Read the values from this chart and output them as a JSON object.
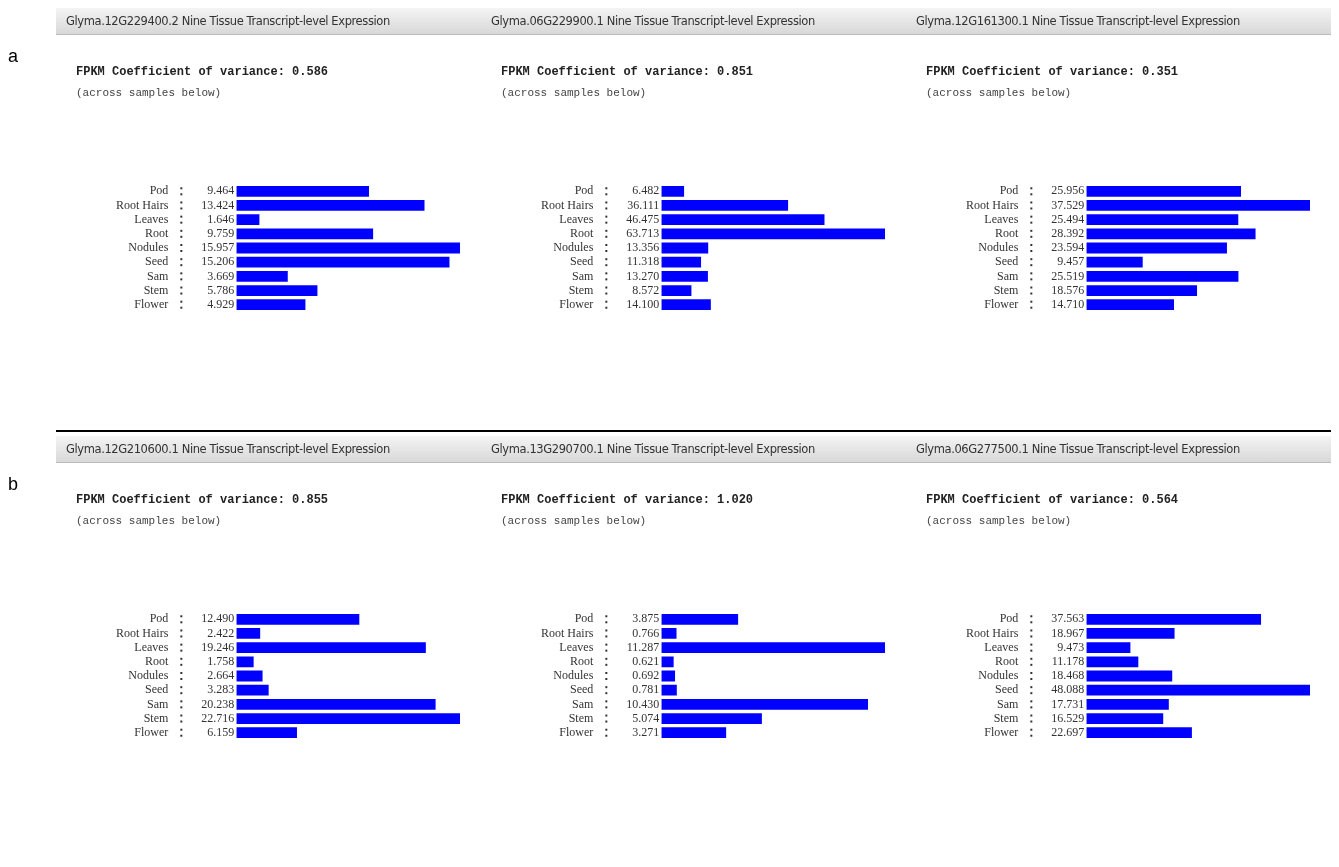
{
  "chart_data": [
    {
      "type": "bar",
      "orientation": "horizontal",
      "title": "Glyma.12G229400.2 Nine Tissue Transcript-level Expression",
      "subtitle": "FPKM Coefficient of variance: 0.586",
      "annotations": [
        "(across samples below)",
        "a"
      ],
      "categories": [
        "Pod",
        "Root Hairs",
        "Leaves",
        "Root",
        "Nodules",
        "Seed",
        "Sam",
        "Stem",
        "Flower"
      ],
      "color": "#0000ff",
      "values": [
        9.464,
        13.424,
        1.646,
        9.759,
        15.957,
        15.206,
        3.669,
        5.786,
        4.929
      ],
      "value_labels": [
        "9.464",
        "13.424",
        "1.646",
        "9.759",
        "15.957",
        "15.206",
        "3.669",
        "5.786",
        "4.929"
      ],
      "tick_labels": "y"
    },
    {
      "type": "bar",
      "orientation": "horizontal",
      "title": "Glyma.06G229900.1 Nine Tissue Transcript-level Expression",
      "subtitle": "FPKM Coefficient of variance: 0.851",
      "annotations": [
        "(across samples below)"
      ],
      "categories": [
        "Pod",
        "Root Hairs",
        "Leaves",
        "Root",
        "Nodules",
        "Seed",
        "Sam",
        "Stem",
        "Flower"
      ],
      "color": "#0000ff",
      "values": [
        6.482,
        36.111,
        46.475,
        63.713,
        13.356,
        11.318,
        13.27,
        8.572,
        14.1
      ],
      "value_labels": [
        "6.482",
        "36.111",
        "46.475",
        "63.713",
        "13.356",
        "11.318",
        "13.270",
        "8.572",
        "14.100"
      ],
      "tick_labels": "y"
    },
    {
      "type": "bar",
      "orientation": "horizontal",
      "title": "Glyma.12G161300.1 Nine Tissue Transcript-level Expression",
      "subtitle": "FPKM Coefficient of variance: 0.351",
      "annotations": [
        "(across samples below)"
      ],
      "categories": [
        "Pod",
        "Root Hairs",
        "Leaves",
        "Root",
        "Nodules",
        "Seed",
        "Sam",
        "Stem",
        "Flower"
      ],
      "color": "#0000ff",
      "values": [
        25.956,
        37.529,
        25.494,
        28.392,
        23.594,
        9.457,
        25.519,
        18.576,
        14.71
      ],
      "value_labels": [
        "25.956",
        "37.529",
        "25.494",
        "28.392",
        "23.594",
        "9.457",
        "25.519",
        "18.576",
        "14.710"
      ],
      "tick_labels": "y"
    },
    {
      "type": "bar",
      "orientation": "horizontal",
      "title": "Glyma.12G210600.1 Nine Tissue Transcript-level Expression",
      "subtitle": "FPKM Coefficient of variance: 0.855",
      "annotations": [
        "(across samples below)",
        "b"
      ],
      "categories": [
        "Pod",
        "Root Hairs",
        "Leaves",
        "Root",
        "Nodules",
        "Seed",
        "Sam",
        "Stem",
        "Flower"
      ],
      "color": "#0000ff",
      "values": [
        12.49,
        2.422,
        19.246,
        1.758,
        2.664,
        3.283,
        20.238,
        22.716,
        6.159
      ],
      "value_labels": [
        "12.490",
        "2.422",
        "19.246",
        "1.758",
        "2.664",
        "3.283",
        "20.238",
        "22.716",
        "6.159"
      ],
      "tick_labels": "y"
    },
    {
      "type": "bar",
      "orientation": "horizontal",
      "title": "Glyma.13G290700.1 Nine Tissue Transcript-level Expression",
      "subtitle": "FPKM Coefficient of variance: 1.020",
      "annotations": [
        "(across samples below)"
      ],
      "categories": [
        "Pod",
        "Root Hairs",
        "Leaves",
        "Root",
        "Nodules",
        "Seed",
        "Sam",
        "Stem",
        "Flower"
      ],
      "color": "#0000ff",
      "values": [
        3.875,
        0.766,
        11.287,
        0.621,
        0.692,
        0.781,
        10.43,
        5.074,
        3.271
      ],
      "value_labels": [
        "3.875",
        "0.766",
        "11.287",
        "0.621",
        "0.692",
        "0.781",
        "10.430",
        "5.074",
        "3.271"
      ],
      "tick_labels": "y"
    },
    {
      "type": "bar",
      "orientation": "horizontal",
      "title": "Glyma.06G277500.1 Nine Tissue Transcript-level Expression",
      "subtitle": "FPKM Coefficient of variance: 0.564",
      "annotations": [
        "(across samples below)"
      ],
      "categories": [
        "Pod",
        "Root Hairs",
        "Leaves",
        "Root",
        "Nodules",
        "Seed",
        "Sam",
        "Stem",
        "Flower"
      ],
      "color": "#0000ff",
      "values": [
        37.563,
        18.967,
        9.473,
        11.178,
        18.468,
        48.088,
        17.731,
        16.529,
        22.697
      ],
      "value_labels": [
        "37.563",
        "18.967",
        "9.473",
        "11.178",
        "18.468",
        "48.088",
        "17.731",
        "16.529",
        "22.697"
      ],
      "tick_labels": "y"
    }
  ]
}
